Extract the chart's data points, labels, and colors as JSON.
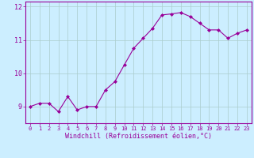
{
  "x": [
    0,
    1,
    2,
    3,
    4,
    5,
    6,
    7,
    8,
    9,
    10,
    11,
    12,
    13,
    14,
    15,
    16,
    17,
    18,
    19,
    20,
    21,
    22,
    23
  ],
  "y": [
    9.0,
    9.1,
    9.1,
    8.85,
    9.3,
    8.9,
    9.0,
    9.0,
    9.5,
    9.75,
    10.25,
    10.75,
    11.05,
    11.35,
    11.75,
    11.78,
    11.82,
    11.7,
    11.5,
    11.3,
    11.3,
    11.05,
    11.2,
    11.3
  ],
  "line_color": "#990099",
  "marker": "D",
  "marker_size": 2,
  "bg_color": "#cceeff",
  "grid_color": "#aacccc",
  "xlabel": "Windchill (Refroidissement éolien,°C)",
  "ylim": [
    8.5,
    12.15
  ],
  "xlim": [
    -0.5,
    23.5
  ],
  "yticks": [
    9,
    10,
    11,
    12
  ],
  "xticks": [
    0,
    1,
    2,
    3,
    4,
    5,
    6,
    7,
    8,
    9,
    10,
    11,
    12,
    13,
    14,
    15,
    16,
    17,
    18,
    19,
    20,
    21,
    22,
    23
  ],
  "tick_fontsize": 5.0,
  "xlabel_fontsize": 6.0,
  "label_color": "#990099"
}
